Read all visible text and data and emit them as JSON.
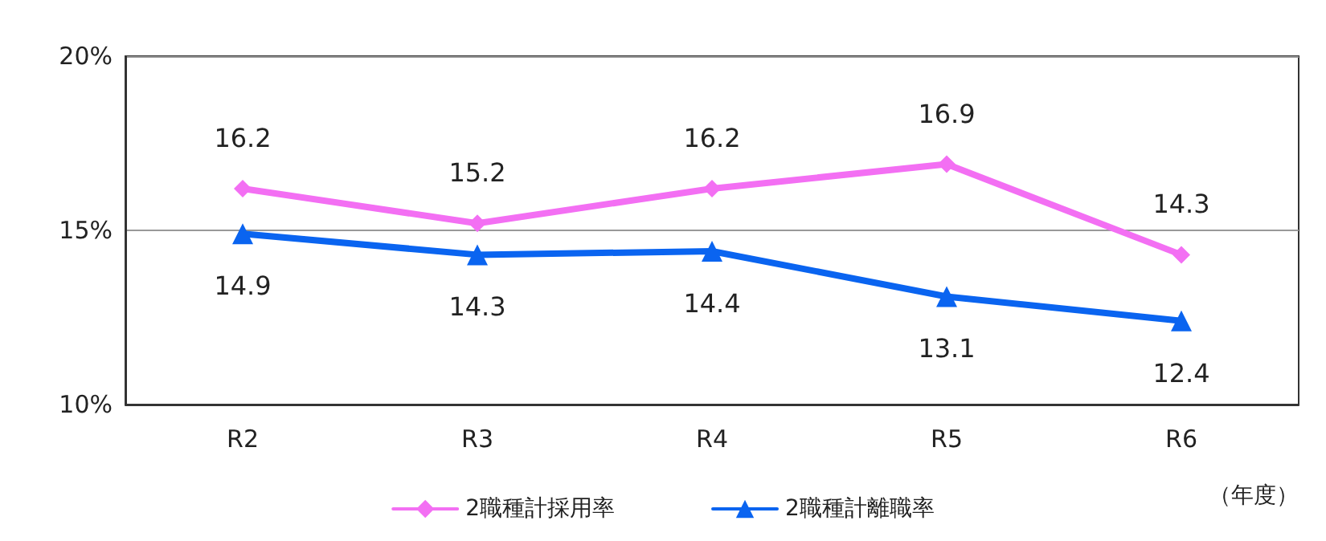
{
  "chart_data": {
    "type": "line",
    "categories": [
      "R2",
      "R3",
      "R4",
      "R5",
      "R6"
    ],
    "series": [
      {
        "name": "2職種計採用率",
        "color": "#f36ff3",
        "marker": "diamond",
        "values": [
          16.2,
          15.2,
          16.2,
          16.9,
          14.3
        ]
      },
      {
        "name": "2職種計離職率",
        "color": "#0a64f0",
        "marker": "triangle",
        "values": [
          14.9,
          14.3,
          14.4,
          13.1,
          12.4
        ]
      }
    ],
    "ylim": [
      10,
      20
    ],
    "yticks": [
      {
        "value": 10,
        "label": "10%"
      },
      {
        "value": 15,
        "label": "15%"
      },
      {
        "value": 20,
        "label": "20%"
      }
    ],
    "xlabel": "（年度）",
    "grid": "y",
    "legend": "bottom",
    "data_labels": true,
    "line_style": "solid"
  }
}
